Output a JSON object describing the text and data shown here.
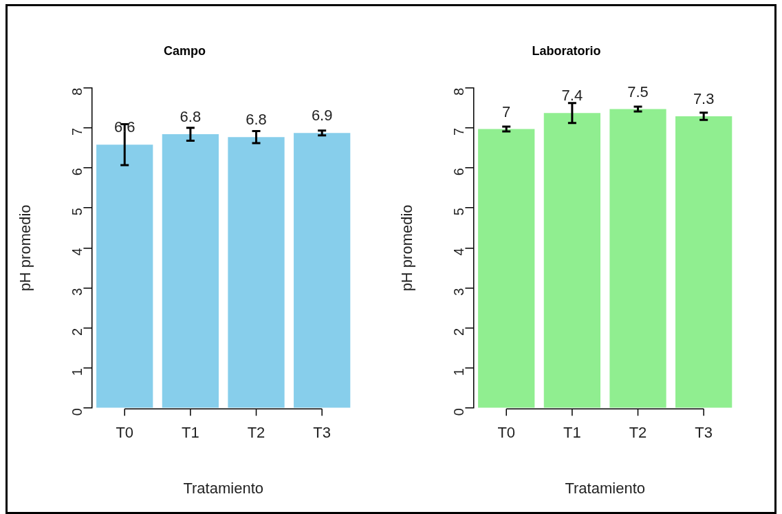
{
  "chart_data": [
    {
      "type": "bar",
      "title": "Campo",
      "xlabel": "Tratamiento",
      "ylabel": "pH promedio",
      "categories": [
        "T0",
        "T1",
        "T2",
        "T3"
      ],
      "values": [
        6.58,
        6.84,
        6.77,
        6.87
      ],
      "color": "#87ceeb",
      "errors": [
        0.51,
        0.16,
        0.15,
        0.06
      ],
      "value_labels": [
        "6.6",
        "6.8",
        "6.8",
        "6.9"
      ],
      "ylim": [
        0,
        8
      ],
      "yticks": [
        0,
        1,
        2,
        3,
        4,
        5,
        6,
        7,
        8
      ],
      "grid": false
    },
    {
      "type": "bar",
      "title": "Laboratorio",
      "xlabel": "Tratamiento",
      "ylabel": "pH promedio",
      "categories": [
        "T0",
        "T1",
        "T2",
        "T3"
      ],
      "values": [
        6.97,
        7.37,
        7.47,
        7.29
      ],
      "color": "#90ee90",
      "errors": [
        0.06,
        0.25,
        0.06,
        0.09
      ],
      "value_labels": [
        "7",
        "7.4",
        "7.5",
        "7.3"
      ],
      "ylim": [
        0,
        8
      ],
      "yticks": [
        0,
        1,
        2,
        3,
        4,
        5,
        6,
        7,
        8
      ],
      "grid": false
    }
  ]
}
